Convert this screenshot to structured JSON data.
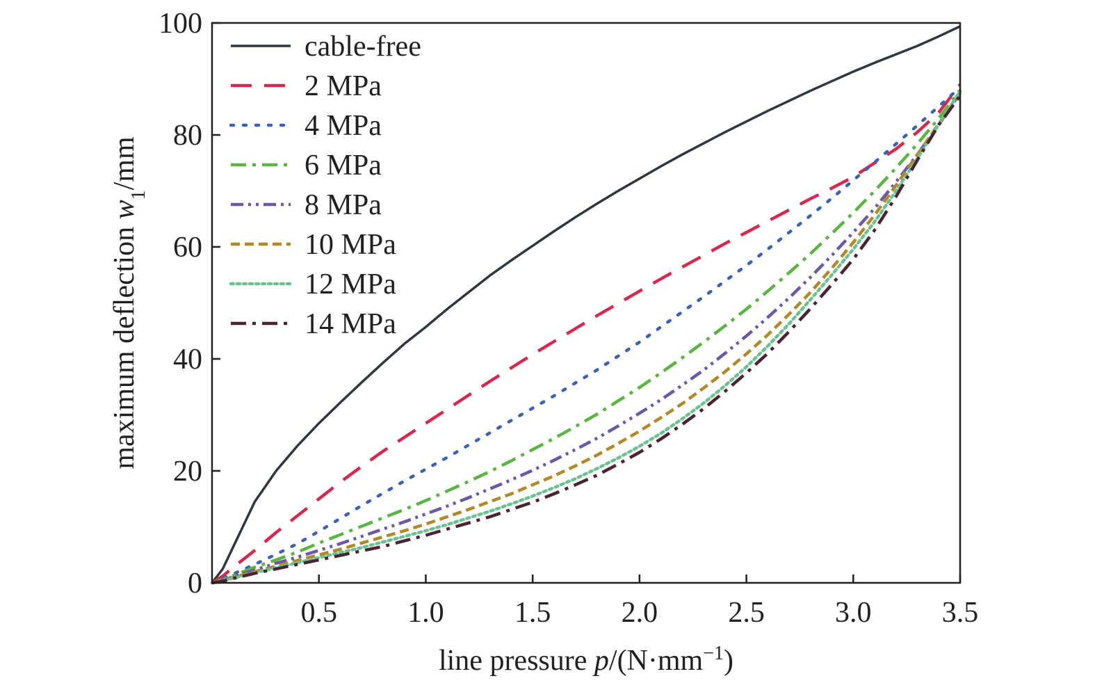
{
  "chart_data": {
    "type": "line",
    "title": "",
    "xlabel": {
      "pre": "line pressure ",
      "var": "p",
      "post": "/(N·mm",
      "sup": "−1",
      "end": ")"
    },
    "ylabel": {
      "pre": "maximum deflection ",
      "var": "w",
      "sub": "1",
      "post": "/mm"
    },
    "xlim": [
      0,
      3.5
    ],
    "ylim": [
      0,
      100
    ],
    "xticks": [
      0.5,
      1.0,
      1.5,
      2.0,
      2.5,
      3.0,
      3.5
    ],
    "xtick_labels": [
      "0.5",
      "1.0",
      "1.5",
      "2.0",
      "2.5",
      "3.0",
      "3.5"
    ],
    "yticks": [
      0,
      20,
      40,
      60,
      80,
      100
    ],
    "ytick_labels": [
      "0",
      "20",
      "40",
      "60",
      "80",
      "100"
    ],
    "grid": false,
    "legend_position": "top-left",
    "x": [
      0,
      0.05,
      0.1,
      0.2,
      0.3,
      0.4,
      0.5,
      0.6,
      0.7,
      0.8,
      0.9,
      1.0,
      1.1,
      1.2,
      1.3,
      1.4,
      1.5,
      1.6,
      1.7,
      1.8,
      1.9,
      2.0,
      2.1,
      2.2,
      2.3,
      2.4,
      2.5,
      2.6,
      2.7,
      2.8,
      2.9,
      3.0,
      3.1,
      3.2,
      3.3,
      3.4,
      3.5
    ],
    "series": [
      {
        "name": "cable-free",
        "color": "#2e3740",
        "dash": "solid",
        "values": [
          0,
          2.5,
          6.5,
          14.5,
          20,
          24.5,
          28.5,
          32.2,
          35.8,
          39.3,
          42.7,
          45.7,
          48.9,
          51.9,
          54.9,
          57.6,
          60.2,
          62.8,
          65.3,
          67.7,
          70.0,
          72.2,
          74.4,
          76.5,
          78.5,
          80.5,
          82.4,
          84.3,
          86.1,
          87.9,
          89.6,
          91.3,
          92.9,
          94.4,
          95.9,
          97.6,
          99.4
        ]
      },
      {
        "name": "2 MPa",
        "color": "#d6294f",
        "dash": "long-dash",
        "values": [
          0,
          1.2,
          2.8,
          5.8,
          9,
          12,
          15,
          18,
          20.8,
          23.5,
          26,
          28.5,
          31,
          33.5,
          36,
          38.4,
          40.8,
          43.1,
          45.4,
          47.7,
          49.9,
          52.1,
          54.3,
          56.4,
          58.5,
          60.6,
          62.6,
          64.6,
          66.6,
          68.6,
          70.5,
          72.5,
          75,
          77.5,
          80.5,
          84,
          89
        ]
      },
      {
        "name": "4 MPa",
        "color": "#3a62b0",
        "dash": "dot",
        "values": [
          0,
          0.8,
          1.6,
          3.3,
          5.1,
          7,
          9.2,
          11.5,
          13.8,
          16,
          18.2,
          20.3,
          22.4,
          24.6,
          26.8,
          29,
          31.2,
          33.4,
          35.7,
          38,
          40.5,
          43,
          45.7,
          48.4,
          51.1,
          53.9,
          56.7,
          59.6,
          62.6,
          65.6,
          68.7,
          71.9,
          75.1,
          78.4,
          81.7,
          85.1,
          88.5
        ]
      },
      {
        "name": "6 MPa",
        "color": "#5cb445",
        "dash": "dash-dot",
        "values": [
          0,
          0.6,
          1.3,
          2.8,
          4.1,
          5.5,
          7.1,
          8.6,
          10.1,
          11.6,
          13.1,
          14.7,
          16.4,
          18.1,
          19.9,
          21.8,
          23.8,
          25.8,
          27.9,
          30.1,
          32.5,
          34.9,
          37.5,
          40.2,
          43.0,
          45.9,
          48.9,
          52.1,
          55.4,
          58.8,
          62.4,
          66.1,
          70.0,
          74.1,
          78.4,
          83.0,
          88.0
        ]
      },
      {
        "name": "8 MPa",
        "color": "#6b59a8",
        "dash": "dash-dot-dot",
        "values": [
          0,
          0.5,
          1.1,
          2.3,
          3.5,
          4.6,
          5.8,
          7.0,
          8.3,
          9.6,
          10.9,
          12.3,
          13.7,
          15.2,
          16.8,
          18.4,
          20.1,
          21.9,
          23.8,
          25.8,
          28.0,
          30.3,
          32.7,
          35.3,
          38.0,
          41.0,
          44.1,
          47.4,
          50.9,
          54.6,
          58.5,
          62.6,
          66.9,
          71.6,
          76.5,
          81.8,
          87.5
        ]
      },
      {
        "name": "10 MPa",
        "color": "#b08a2a",
        "dash": "short-dash",
        "values": [
          0,
          0.4,
          1.0,
          2.0,
          3.0,
          4.0,
          5.0,
          6.0,
          7.1,
          8.2,
          9.3,
          10.5,
          11.8,
          13.1,
          14.5,
          15.9,
          17.5,
          19.1,
          20.9,
          22.8,
          24.9,
          27.1,
          29.5,
          32.0,
          34.8,
          37.7,
          40.9,
          44.3,
          48.0,
          51.9,
          56.2,
          60.8,
          65.7,
          71.0,
          76.5,
          82.0,
          87.6
        ]
      },
      {
        "name": "12 MPa",
        "color": "#6dc08f",
        "dash": "dense-dot",
        "values": [
          0,
          0.35,
          0.85,
          1.8,
          2.7,
          3.6,
          4.5,
          5.4,
          6.3,
          7.3,
          8.3,
          9.3,
          10.4,
          11.6,
          12.8,
          14.1,
          15.5,
          17.0,
          18.6,
          20.4,
          22.3,
          24.4,
          26.7,
          29.3,
          32.1,
          35.2,
          38.6,
          42.3,
          46.3,
          50.6,
          55.0,
          59.6,
          64.5,
          70.0,
          75.8,
          81.9,
          87.8
        ]
      },
      {
        "name": "14 MPa",
        "color": "#4a2434",
        "dash": "dash-dot",
        "values": [
          0,
          0.3,
          0.8,
          1.7,
          2.5,
          3.3,
          4.1,
          4.9,
          5.7,
          6.5,
          7.5,
          8.5,
          9.6,
          10.7,
          11.8,
          13.1,
          14.4,
          15.9,
          17.5,
          19.2,
          21.2,
          23.3,
          25.7,
          28.3,
          31.1,
          34.2,
          37.5,
          41.0,
          44.9,
          49.0,
          53.3,
          57.8,
          63.0,
          69.0,
          75.5,
          81.8,
          87.0
        ]
      }
    ]
  }
}
